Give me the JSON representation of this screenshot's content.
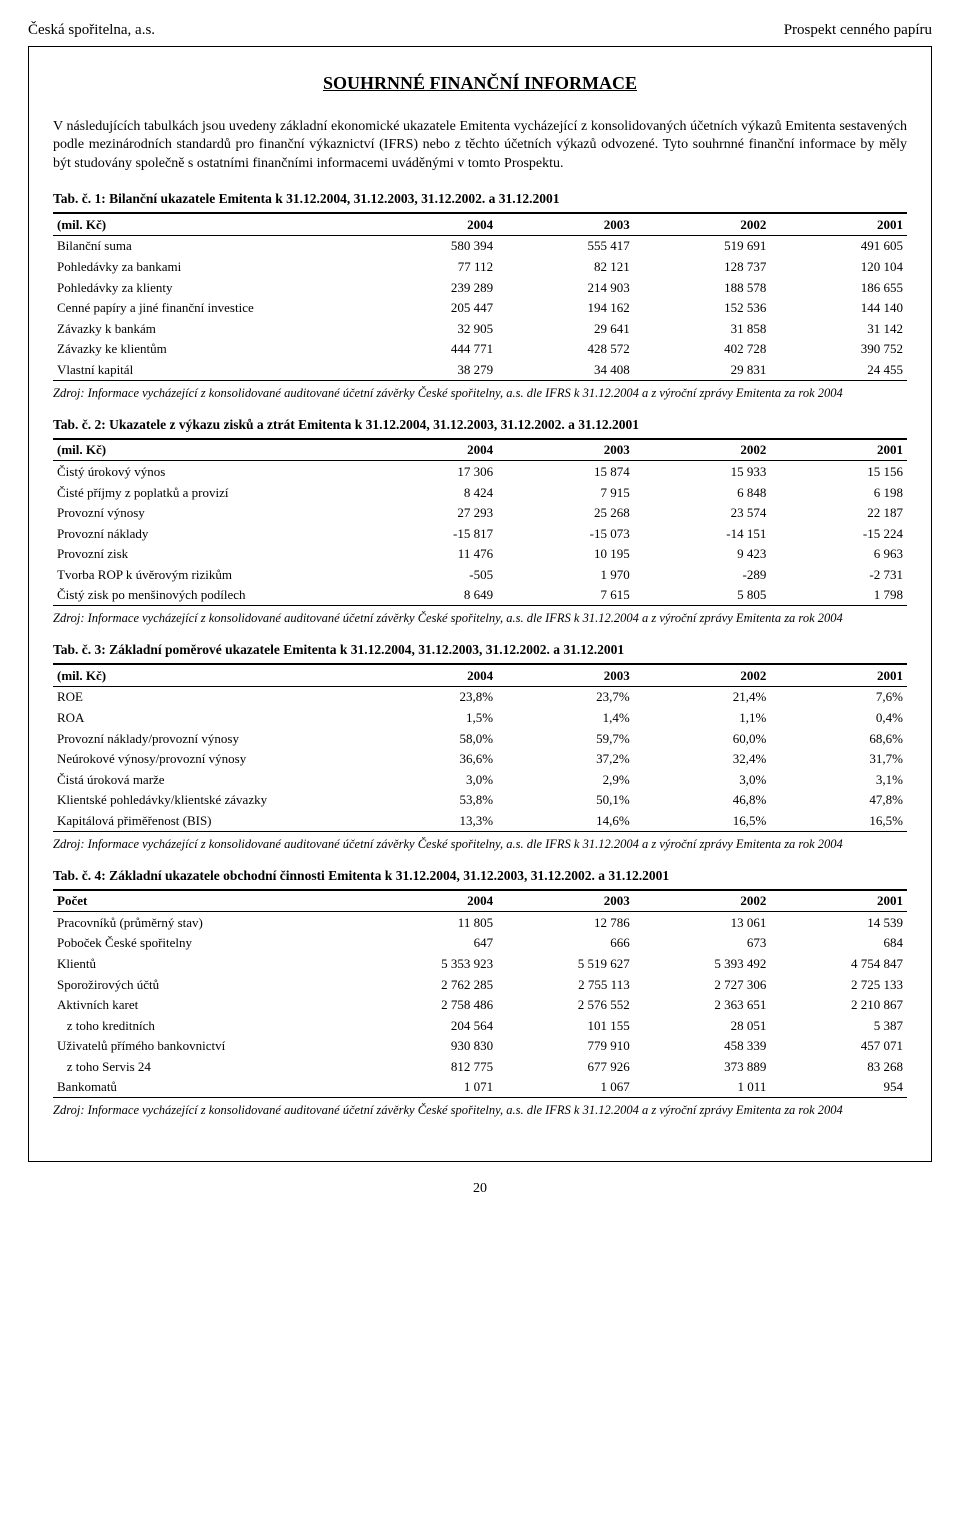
{
  "header": {
    "left": "Česká spořitelna, a.s.",
    "right": "Prospekt cenného papíru"
  },
  "title": "SOUHRNNÉ FINANČNÍ INFORMACE",
  "intro": "V následujících tabulkách jsou uvedeny základní ekonomické ukazatele Emitenta vycházející z konsolidovaných účetních výkazů Emitenta sestavených podle mezinárodních standardů pro finanční výkaznictví (IFRS) nebo z těchto účetních výkazů odvozené. Tyto souhrnné finanční informace by měly být studovány společně s ostatními finančními informacemi uváděnými v tomto Prospektu.",
  "source_text": "Zdroj: Informace vycházející z konsolidované auditované účetní závěrky České spořitelny, a.s. dle IFRS k 31.12.2004 a z výroční zprávy Emitenta za rok 2004",
  "page_number": "20",
  "table1": {
    "caption": "Tab. č. 1: Bilanční ukazatele Emitenta k 31.12.2004, 31.12.2003, 31.12.2002. a 31.12.2001",
    "head": [
      "(mil. Kč)",
      "2004",
      "2003",
      "2002",
      "2001"
    ],
    "rows": [
      [
        "Bilanční suma",
        "580 394",
        "555 417",
        "519 691",
        "491 605"
      ],
      [
        "Pohledávky za bankami",
        "77 112",
        "82 121",
        "128 737",
        "120 104"
      ],
      [
        "Pohledávky za klienty",
        "239 289",
        "214 903",
        "188 578",
        "186 655"
      ],
      [
        "Cenné papíry a jiné finanční investice",
        "205 447",
        "194 162",
        "152 536",
        "144 140"
      ],
      [
        "Závazky k bankám",
        "32 905",
        "29 641",
        "31 858",
        "31 142"
      ],
      [
        "Závazky ke klientům",
        "444 771",
        "428 572",
        "402 728",
        "390 752"
      ],
      [
        "Vlastní kapitál",
        "38 279",
        "34 408",
        "29 831",
        "24 455"
      ]
    ]
  },
  "table2": {
    "caption": "Tab. č. 2: Ukazatele z výkazu zisků a ztrát Emitenta k 31.12.2004, 31.12.2003, 31.12.2002. a 31.12.2001",
    "head": [
      "(mil. Kč)",
      "2004",
      "2003",
      "2002",
      "2001"
    ],
    "rows": [
      [
        "Čistý úrokový výnos",
        "17 306",
        "15 874",
        "15 933",
        "15 156"
      ],
      [
        "Čisté příjmy z poplatků a provizí",
        "8 424",
        "7 915",
        "6 848",
        "6 198"
      ],
      [
        "Provozní výnosy",
        "27 293",
        "25 268",
        "23 574",
        "22 187"
      ],
      [
        "Provozní náklady",
        "-15 817",
        "-15 073",
        "-14 151",
        "-15 224"
      ],
      [
        "Provozní zisk",
        "11 476",
        "10 195",
        "9 423",
        "6 963"
      ],
      [
        "Tvorba ROP k úvěrovým rizikům",
        "-505",
        "1 970",
        "-289",
        "-2 731"
      ],
      [
        "Čistý zisk po menšinových podílech",
        "8 649",
        "7 615",
        "5 805",
        "1 798"
      ]
    ]
  },
  "table3": {
    "caption": "Tab. č. 3: Základní poměrové ukazatele Emitenta k 31.12.2004, 31.12.2003, 31.12.2002. a 31.12.2001",
    "head": [
      "(mil. Kč)",
      "2004",
      "2003",
      "2002",
      "2001"
    ],
    "rows": [
      [
        "ROE",
        "23,8%",
        "23,7%",
        "21,4%",
        "7,6%"
      ],
      [
        "ROA",
        "1,5%",
        "1,4%",
        "1,1%",
        "0,4%"
      ],
      [
        "Provozní náklady/provozní výnosy",
        "58,0%",
        "59,7%",
        "60,0%",
        "68,6%"
      ],
      [
        "Neúrokové výnosy/provozní výnosy",
        "36,6%",
        "37,2%",
        "32,4%",
        "31,7%"
      ],
      [
        "Čistá úroková marže",
        "3,0%",
        "2,9%",
        "3,0%",
        "3,1%"
      ],
      [
        "Klientské pohledávky/klientské závazky",
        "53,8%",
        "50,1%",
        "46,8%",
        "47,8%"
      ],
      [
        "Kapitálová přiměřenost (BIS)",
        "13,3%",
        "14,6%",
        "16,5%",
        "16,5%"
      ]
    ]
  },
  "table4": {
    "caption": "Tab. č. 4: Základní ukazatele obchodní činnosti Emitenta k 31.12.2004, 31.12.2003, 31.12.2002. a 31.12.2001",
    "head": [
      "Počet",
      "2004",
      "2003",
      "2002",
      "2001"
    ],
    "rows": [
      [
        "Pracovníků (průměrný stav)",
        "11 805",
        "12 786",
        "13 061",
        "14 539"
      ],
      [
        "Poboček České spořitelny",
        "647",
        "666",
        "673",
        "684"
      ],
      [
        "Klientů",
        "5 353 923",
        "5 519 627",
        "5 393 492",
        "4 754 847"
      ],
      [
        "Sporožirových účtů",
        "2 762 285",
        "2 755 113",
        "2 727 306",
        "2 725 133"
      ],
      [
        "Aktivních karet",
        "2 758 486",
        "2 576 552",
        "2 363 651",
        "2 210 867"
      ],
      [
        "   z toho kreditních",
        "204 564",
        "101 155",
        "28 051",
        "5 387"
      ],
      [
        "Uživatelů přímého bankovnictví",
        "930 830",
        "779 910",
        "458 339",
        "457 071"
      ],
      [
        "   z toho Servis 24",
        "812 775",
        "677 926",
        "373 889",
        "83 268"
      ],
      [
        "Bankomatů",
        "1 071",
        "1 067",
        "1 011",
        "954"
      ]
    ]
  }
}
